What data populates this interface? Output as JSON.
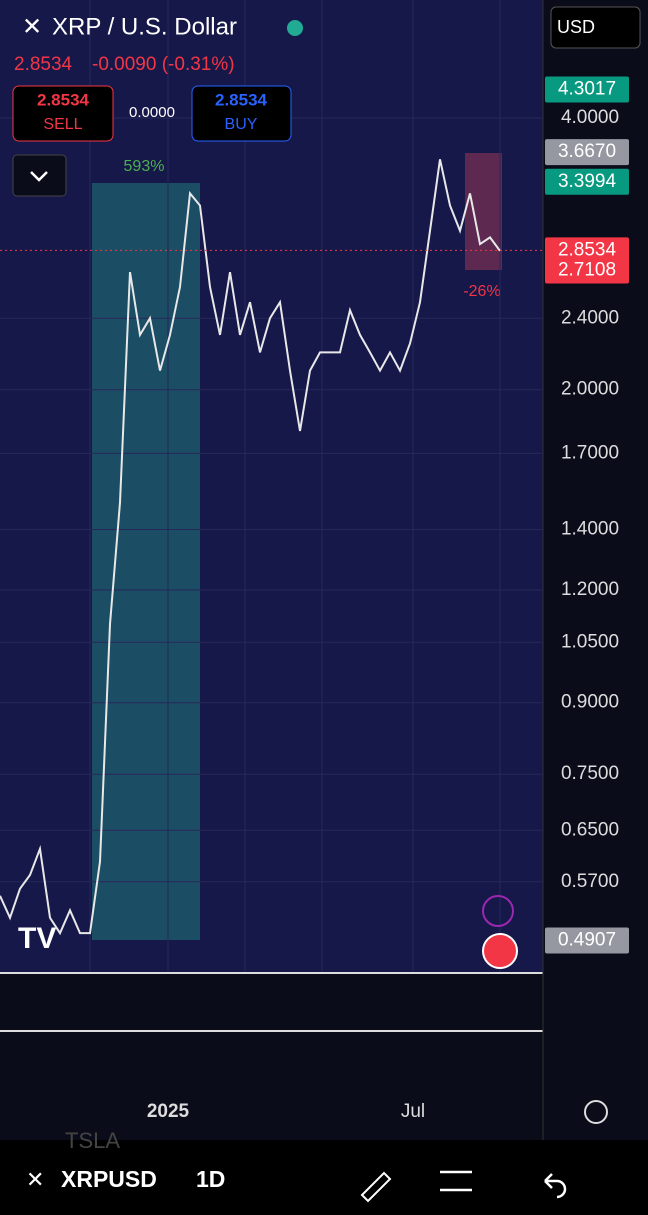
{
  "header": {
    "title": "XRP / U.S. Dollar",
    "currency": "USD",
    "price": "2.8534",
    "change": "-0.0090 (-0.31%)"
  },
  "trade": {
    "sell_price": "2.8534",
    "sell": "SELL",
    "spread": "0.0000",
    "buy_price": "2.8534",
    "buy": "BUY"
  },
  "chart": {
    "log_scale": true,
    "closes": [
      0.55,
      0.52,
      0.56,
      0.58,
      0.62,
      0.52,
      0.5,
      0.53,
      0.5,
      0.5,
      0.6,
      1.1,
      1.5,
      2.7,
      2.3,
      2.4,
      2.1,
      2.3,
      2.6,
      3.3,
      3.2,
      2.6,
      2.3,
      2.7,
      2.3,
      2.5,
      2.2,
      2.4,
      2.5,
      2.1,
      1.8,
      2.1,
      2.2,
      2.2,
      2.2,
      2.45,
      2.3,
      2.2,
      2.1,
      2.2,
      2.1,
      2.25,
      2.5,
      3.0,
      3.6,
      3.2,
      3.0,
      3.3,
      2.9,
      2.95,
      2.85
    ],
    "yticks": [
      {
        "value": 4,
        "label": "4.0000"
      },
      {
        "value": 2.4,
        "label": "2.4000"
      },
      {
        "value": 2,
        "label": "2.0000"
      },
      {
        "value": 1.7,
        "label": "1.7000"
      },
      {
        "value": 1.4,
        "label": "1.4000"
      },
      {
        "value": 1.2,
        "label": "1.2000"
      },
      {
        "value": 1.05,
        "label": "1.0500"
      },
      {
        "value": 0.9,
        "label": "0.9000"
      },
      {
        "value": 0.75,
        "label": "0.7500"
      },
      {
        "value": 0.65,
        "label": "0.6500"
      },
      {
        "value": 0.57,
        "label": "0.5700"
      }
    ],
    "badges": [
      {
        "value": 4.3017,
        "label": "4.3017",
        "color": "#089981"
      },
      {
        "value": 3.667,
        "label": "3.6670",
        "color": "#9598a1"
      },
      {
        "value": 3.3994,
        "label": "3.3994",
        "color": "#089981"
      },
      {
        "value": 2.8534,
        "label": "2.8534",
        "color": "#f23645"
      },
      {
        "value": 2.7108,
        "label": "2.7108",
        "color": "#f23645"
      },
      {
        "value": 0.4907,
        "label": "0.4907",
        "color": "#9598a1"
      }
    ],
    "measure_up": "593%",
    "measure_down": "-26%",
    "time_labels": [
      "2025",
      "Jul"
    ]
  },
  "footer": {
    "symbol": "XRPUSD",
    "interval": "1D",
    "ghost": "TSLA"
  }
}
